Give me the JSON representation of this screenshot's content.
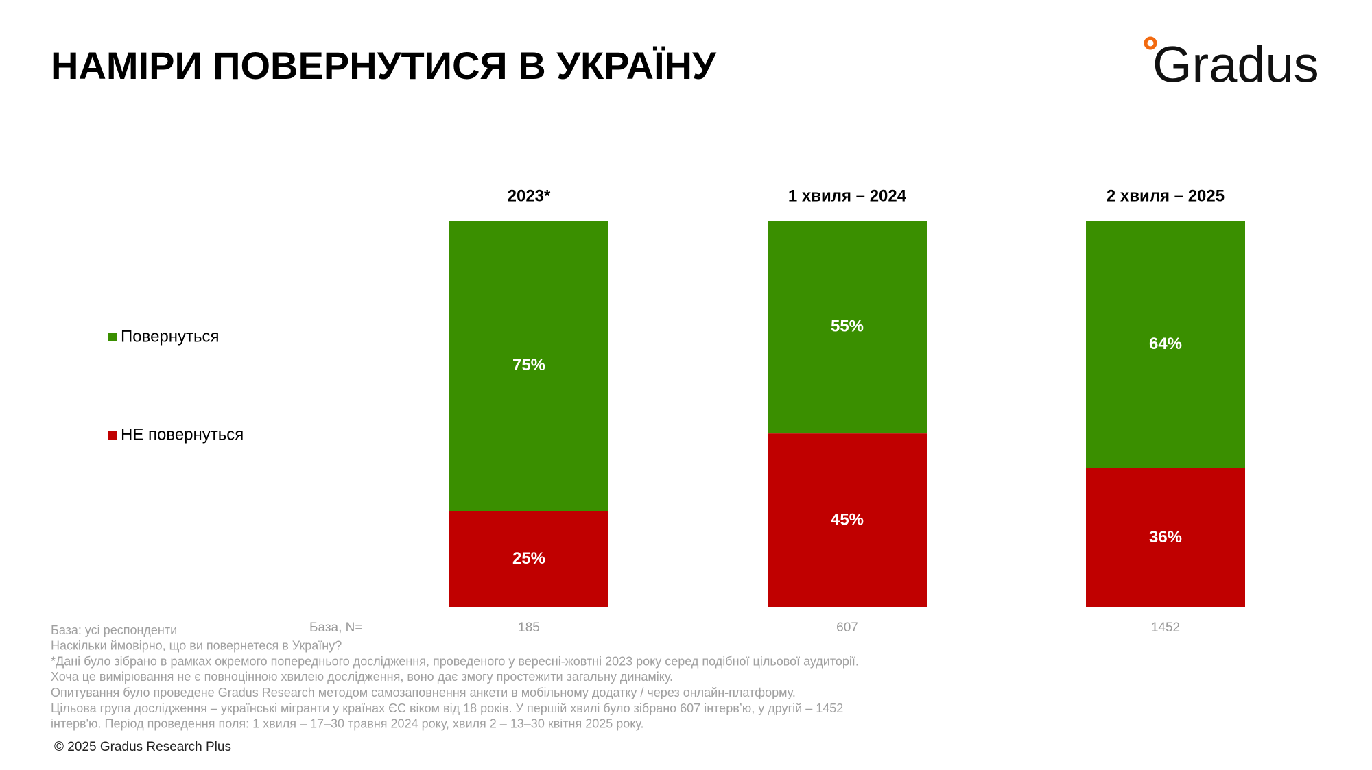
{
  "chart_data": {
    "type": "stacked_bar",
    "title": "НАМІРИ ПОВЕРНУТИСЯ В УКРАЇНУ",
    "logo": "Gradus",
    "categories": [
      "2023*",
      "1 хвиля – 2024",
      "2 хвиля – 2025"
    ],
    "series": [
      {
        "name": "Повернуться",
        "color": "#3a8f00",
        "values": [
          75,
          55,
          64
        ],
        "value_labels": [
          "75%",
          "55%",
          "64%"
        ]
      },
      {
        "name": "НЕ повернуться",
        "color": "#c00000",
        "values": [
          25,
          45,
          36
        ],
        "value_labels": [
          "25%",
          "45%",
          "36%"
        ]
      }
    ],
    "base_label": "База, N=",
    "base_n": [
      185,
      607,
      1452
    ],
    "notes": [
      "База: усі респонденти",
      "Наскільки ймовірно, що ви повернетеся в Україну?",
      "*Дані було зібрано в рамках окремого попереднього дослідження, проведеного у вересні-жовтні 2023 року серед подібної цільової аудиторії.",
      "Хоча це вимірювання не є повноцінною хвилею дослідження, воно дає змогу простежити загальну динаміку.",
      "Опитування було проведене Gradus Research методом самозаповнення анкети в мобільному додатку / через онлайн-платформу.",
      "Цільова група дослідження – українські мігранти у країнах ЄС віком від 18 років. У першій хвилі було зібрано 607 інтерв’ю, у другій – 1452",
      "інтерв'ю. Період проведення поля: 1 хвиля – 17–30 травня 2024 року, хвиля 2 – 13–30 квітня 2025 року."
    ],
    "copyright": "© 2025 Gradus Research Plus"
  }
}
